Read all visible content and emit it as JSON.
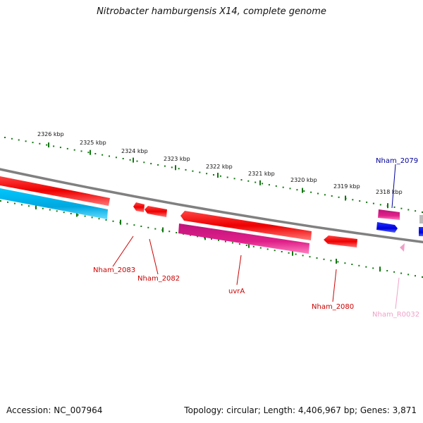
{
  "title": "Nitrobacter hamburgensis X14, complete genome",
  "footer": {
    "accession_label": "Accession:",
    "accession_value": "NC_007964",
    "topology_label": "Topology:",
    "topology_value": "circular",
    "length_label": "Length:",
    "length_value": "4,406,967 bp",
    "genes_label": "Genes:",
    "genes_value": "3,871"
  },
  "ticks": [
    "2326 kbp",
    "2325 kbp",
    "2324 kbp",
    "2323 kbp",
    "2322 kbp",
    "2321 kbp",
    "2320 kbp",
    "2319 kbp",
    "2318 kbp"
  ],
  "genes": [
    {
      "label": "Nham_2083",
      "color": "#cc0000"
    },
    {
      "label": "Nham_2082",
      "color": "#cc0000"
    },
    {
      "label": "uvrA",
      "color": "#cc0000"
    },
    {
      "label": "Nham_2080",
      "color": "#cc0000"
    },
    {
      "label": "Nham_R0032",
      "color": "#f0a0c8"
    },
    {
      "label": "Nham_2079",
      "color": "#000099"
    }
  ],
  "colors": {
    "forward_cds": "#ee0000",
    "reverse_cds": "#00a8e0",
    "rna": "#e0208a",
    "backbone": "#808080",
    "ticks": "#117711"
  }
}
